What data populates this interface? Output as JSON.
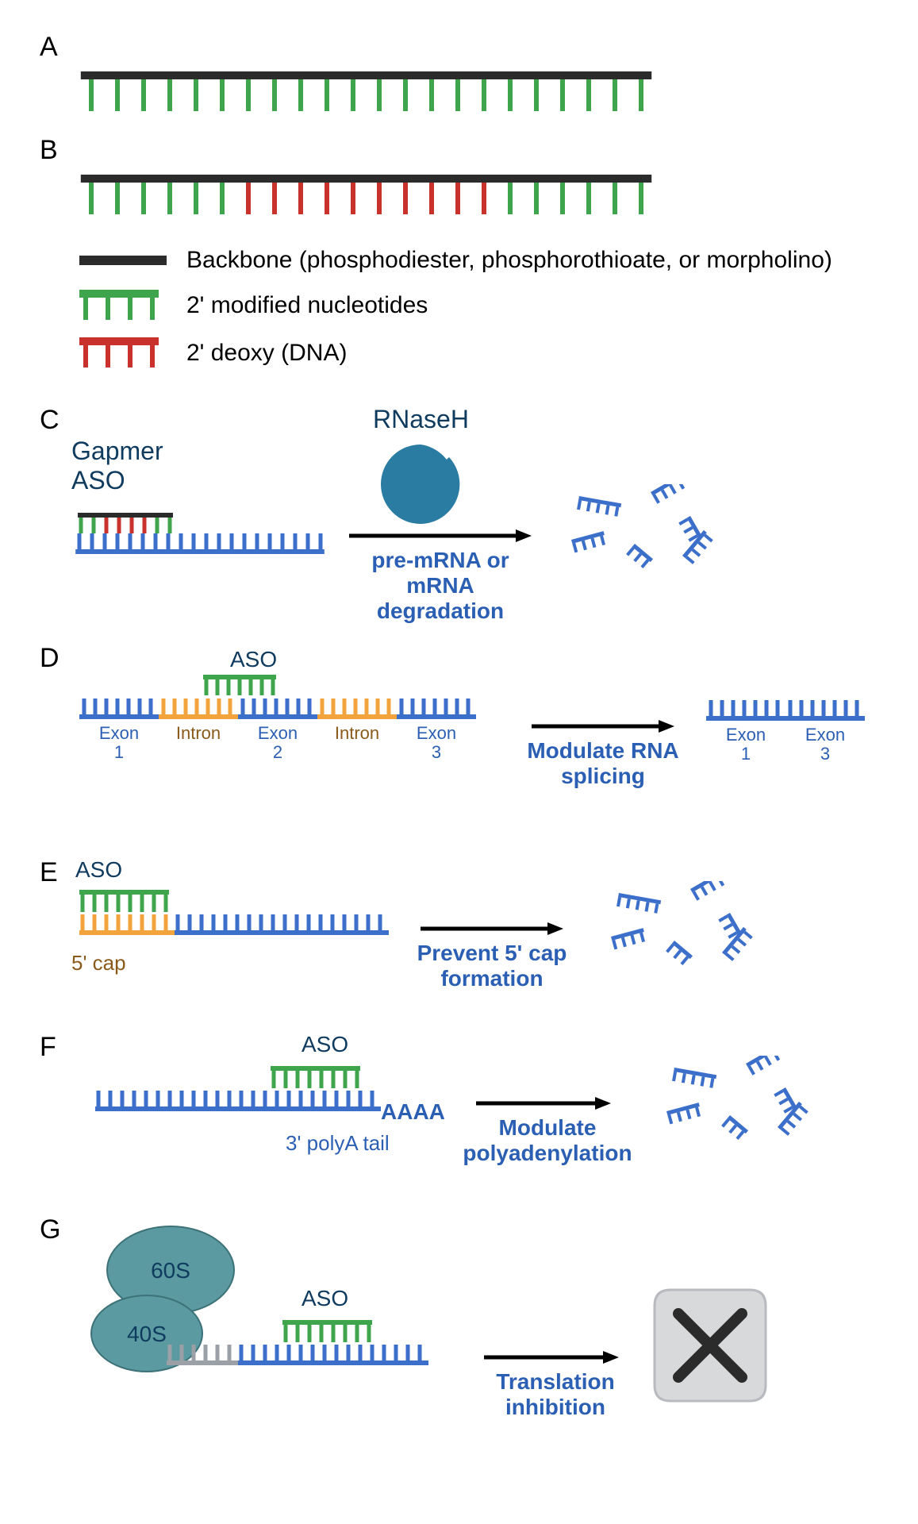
{
  "colors": {
    "backbone": "#2b2b2b",
    "green": "#3fa54d",
    "red": "#c9312c",
    "blue": "#3b6fc9",
    "orange": "#f2a33c",
    "darkText": "#0f3b5f",
    "mechBlue": "#2b5fb3",
    "intronText": "#8a5a1a",
    "ribosomeFill": "#5a9aa0",
    "pacman": "#2b7ca3",
    "gray": "#9aa0a6"
  },
  "panels": {
    "A": {
      "label": "A",
      "n_ticks": 22,
      "tick_color": "green"
    },
    "B": {
      "label": "B",
      "n_ticks": 22,
      "pattern": [
        "g",
        "g",
        "g",
        "g",
        "g",
        "g",
        "r",
        "r",
        "r",
        "r",
        "r",
        "r",
        "r",
        "r",
        "r",
        "r",
        "g",
        "g",
        "g",
        "g",
        "g",
        "g"
      ]
    },
    "legend": {
      "items": [
        {
          "type": "backbone",
          "text": "Backbone (phosphodiester, phosphorothioate, or morpholino)"
        },
        {
          "type": "green-comb",
          "text": "2' modified nucleotides"
        },
        {
          "type": "red-comb",
          "text": "2' deoxy (DNA)"
        }
      ]
    },
    "C": {
      "label": "C",
      "gapmer_title": "Gapmer\nASO",
      "rnaseh_title": "RNaseH",
      "mech": "pre-mRNA or\nmRNA degradation"
    },
    "D": {
      "label": "D",
      "aso_label": "ASO",
      "segments_left": [
        {
          "t": "exon",
          "label": "Exon\n1"
        },
        {
          "t": "intron",
          "label": "Intron"
        },
        {
          "t": "exon",
          "label": "Exon\n2"
        },
        {
          "t": "intron",
          "label": "Intron"
        },
        {
          "t": "exon",
          "label": "Exon\n3"
        }
      ],
      "segments_right": [
        {
          "t": "exon",
          "label": "Exon\n1"
        },
        {
          "t": "exon",
          "label": "Exon\n3"
        }
      ],
      "mech": "Modulate RNA\nsplicing"
    },
    "E": {
      "label": "E",
      "aso_label": "ASO",
      "cap_label": "5' cap",
      "mech": "Prevent 5' cap\nformation"
    },
    "F": {
      "label": "F",
      "aso_label": "ASO",
      "polya_text": "AAAA",
      "tail_label": "3' polyA tail",
      "mech": "Modulate\npolyadenylation"
    },
    "G": {
      "label": "G",
      "sub60": "60S",
      "sub40": "40S",
      "aso_label": "ASO",
      "mech": "Translation\ninhibition"
    }
  }
}
